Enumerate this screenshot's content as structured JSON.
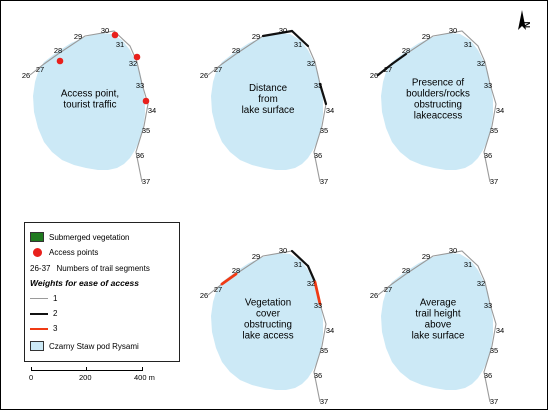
{
  "colors": {
    "lake": "#cce9f6",
    "trail": "#9a9a9a",
    "weight2": "#111111",
    "weight3": "#f03a14",
    "access_point": "#e8201c",
    "vegetation": "#1f7a1f"
  },
  "panels": [
    {
      "title_lines": [
        "Access point,",
        "tourist traffic"
      ],
      "labels": [
        {
          "n": "26"
        },
        {
          "n": "27"
        },
        {
          "n": "28"
        },
        {
          "n": "29"
        },
        {
          "n": "30"
        },
        {
          "n": "31"
        },
        {
          "n": "32"
        },
        {
          "n": "33"
        },
        {
          "n": "34"
        },
        {
          "n": "35"
        },
        {
          "n": "36"
        },
        {
          "n": "37"
        }
      ]
    },
    {
      "title_lines": [
        "Distance",
        "from",
        "lake surface"
      ],
      "labels": [
        {
          "n": "26"
        },
        {
          "n": "27"
        },
        {
          "n": "28"
        },
        {
          "n": "29"
        },
        {
          "n": "30"
        },
        {
          "n": "31"
        },
        {
          "n": "32"
        },
        {
          "n": "33"
        },
        {
          "n": "34"
        },
        {
          "n": "35"
        },
        {
          "n": "36"
        },
        {
          "n": "37"
        }
      ]
    },
    {
      "title_lines": [
        "Presence of",
        "boulders/rocks",
        "obstructing",
        "lakeaccess"
      ],
      "labels": [
        {
          "n": "26"
        },
        {
          "n": "27"
        },
        {
          "n": "28"
        },
        {
          "n": "29"
        },
        {
          "n": "30"
        },
        {
          "n": "31"
        },
        {
          "n": "32"
        },
        {
          "n": "33"
        },
        {
          "n": "34"
        },
        {
          "n": "35"
        },
        {
          "n": "36"
        },
        {
          "n": "37"
        }
      ]
    },
    {
      "title_lines": [
        "Vegetation",
        "cover",
        "obstructing",
        "lake access"
      ],
      "labels": [
        {
          "n": "26"
        },
        {
          "n": "27"
        },
        {
          "n": "28"
        },
        {
          "n": "29"
        },
        {
          "n": "30"
        },
        {
          "n": "31"
        },
        {
          "n": "32"
        },
        {
          "n": "33"
        },
        {
          "n": "34"
        },
        {
          "n": "35"
        },
        {
          "n": "36"
        },
        {
          "n": "37"
        }
      ]
    },
    {
      "title_lines": [
        "Average",
        "trail height",
        "above",
        "lake surface"
      ],
      "labels": [
        {
          "n": "26"
        },
        {
          "n": "27"
        },
        {
          "n": "28"
        },
        {
          "n": "29"
        },
        {
          "n": "30"
        },
        {
          "n": "31"
        },
        {
          "n": "32"
        },
        {
          "n": "33"
        },
        {
          "n": "34"
        },
        {
          "n": "35"
        },
        {
          "n": "36"
        },
        {
          "n": "37"
        }
      ]
    }
  ],
  "segment_weights": [
    {
      "panel": 0,
      "note": "uniform",
      "weight_1_segments": "all"
    },
    {
      "panel": 1,
      "weight_2_segments": [
        "29-30",
        "30-31",
        "33-34"
      ]
    },
    {
      "panel": 2,
      "weight_2_segments": [
        "26-27",
        "27-28"
      ]
    },
    {
      "panel": 3,
      "weight_2_segments": [
        "30-31",
        "31-32"
      ],
      "weight_3_segments": [
        "27-28",
        "32-33"
      ]
    },
    {
      "panel": 4,
      "weight_1_segments": "all"
    }
  ],
  "access_points_panel": 0,
  "access_points_at_segments": [
    "28",
    "30",
    "32",
    "34"
  ],
  "legend": {
    "vegetation": "Submerged vegetation",
    "access": "Access points",
    "segments_range": "26-37",
    "segments_text": "Numbers of trail segments",
    "weights_title": "Weights for ease of access",
    "w1": "1",
    "w2": "2",
    "w3": "3",
    "lake": "Czarny Staw pod Rysami"
  },
  "scale": {
    "l0": "0",
    "l1": "200",
    "l2": "400 m"
  },
  "north": {
    "label": "N",
    "icon": "north-arrow-icon"
  }
}
